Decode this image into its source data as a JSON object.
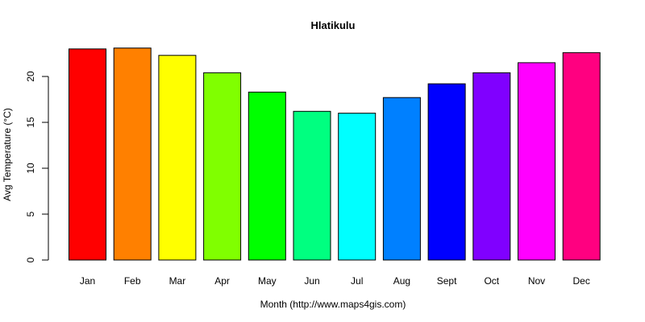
{
  "chart_data": {
    "type": "bar",
    "title": "Hlatikulu",
    "xlabel": "Month (http://www.maps4gis.com)",
    "ylabel": "Avg Temperature (°C)",
    "categories": [
      "Jan",
      "Feb",
      "Mar",
      "Apr",
      "May",
      "Jun",
      "Jul",
      "Aug",
      "Sept",
      "Oct",
      "Nov",
      "Dec"
    ],
    "values": [
      23.0,
      23.1,
      22.3,
      20.4,
      18.3,
      16.2,
      16.0,
      17.7,
      19.2,
      20.4,
      21.5,
      22.6
    ],
    "colors": [
      "#FF0000",
      "#FF8000",
      "#FFFF00",
      "#80FF00",
      "#00FF00",
      "#00FF80",
      "#00FFFF",
      "#0080FF",
      "#0000FF",
      "#8000FF",
      "#FF00FF",
      "#FF0080"
    ],
    "yticks": [
      0,
      5,
      10,
      15,
      20
    ],
    "ylim": [
      0,
      23.1
    ],
    "grid": false,
    "legend": "none"
  }
}
